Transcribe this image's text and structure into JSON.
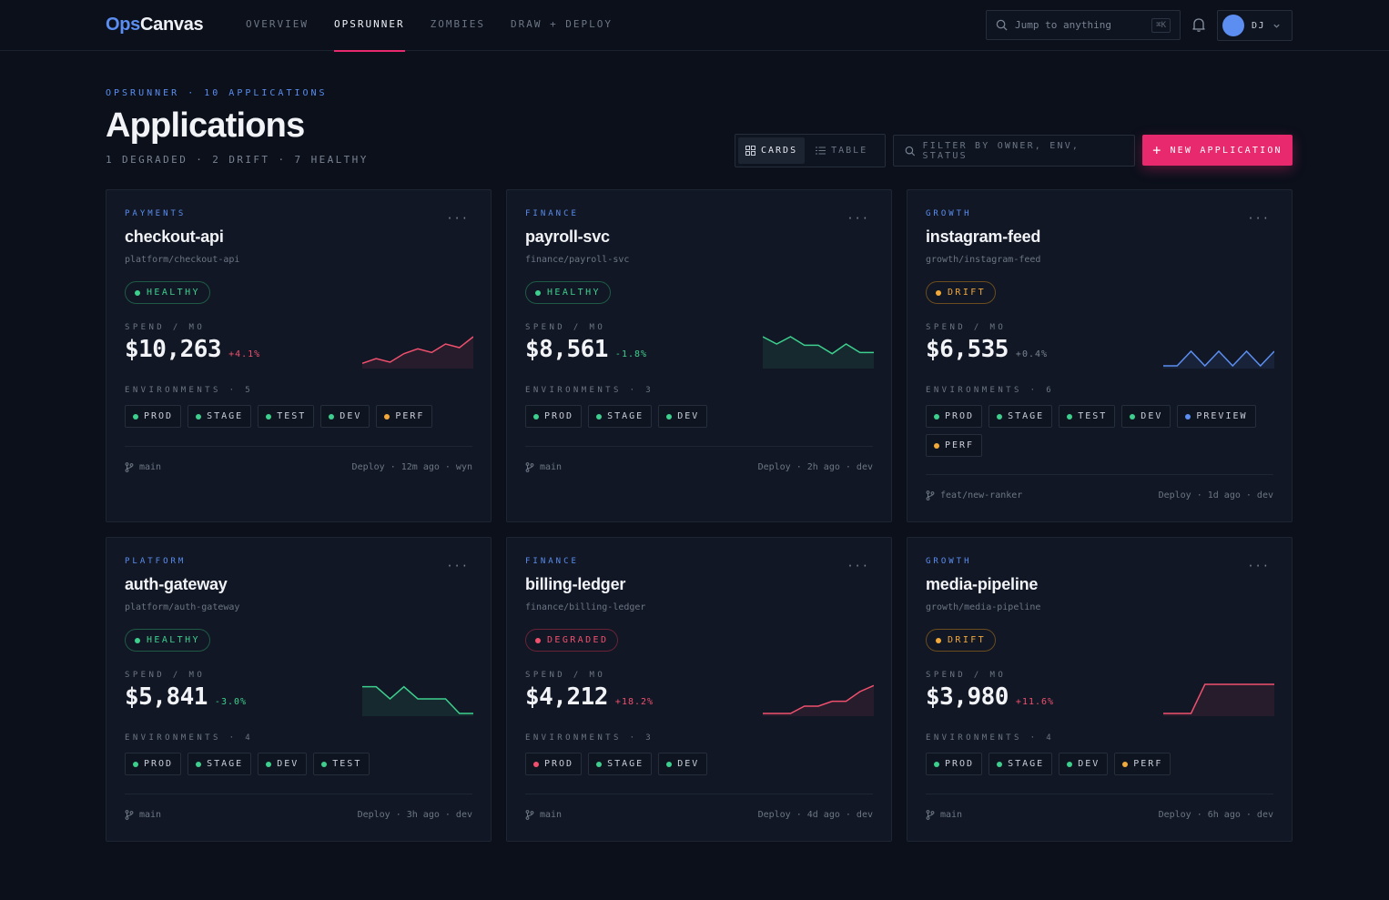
{
  "brand": {
    "part1": "Ops",
    "part2": "Canvas"
  },
  "nav": [
    {
      "label": "OVERVIEW",
      "active": false
    },
    {
      "label": "OPSRUNNER",
      "active": true
    },
    {
      "label": "ZOMBIES",
      "active": false
    },
    {
      "label": "DRAW + DEPLOY",
      "active": false
    }
  ],
  "search": {
    "placeholder": "Jump to anything",
    "shortcut": "⌘K"
  },
  "user": {
    "initials": "DJ"
  },
  "header": {
    "breadcrumb": "OPSRUNNER · 10 APPLICATIONS",
    "title": "Applications",
    "summary": "1 DEGRADED · 2 DRIFT · 7 HEALTHY"
  },
  "toolbar": {
    "cards_label": "CARDS",
    "table_label": "TABLE",
    "filter_placeholder": "FILTER BY OWNER, ENV, STATUS",
    "new_label": "NEW APPLICATION"
  },
  "labels": {
    "spend": "SPEND / MO",
    "environments": "ENVIRONMENTS",
    "more": "···"
  },
  "colors": {
    "accent": "#e9296d",
    "brand_blue": "#5b8ef0",
    "healthy": "#3ecf8e",
    "drift": "#f2a93b",
    "degraded": "#f0506e"
  },
  "cards": [
    {
      "team": "PAYMENTS",
      "name": "checkout-api",
      "repo": "platform/checkout-api",
      "status": "HEALTHY",
      "status_kind": "healthy",
      "spend": "$10,263",
      "change": "+4.1%",
      "trend": "up",
      "env_count": "5",
      "envs": [
        {
          "name": "PROD",
          "state": "healthy"
        },
        {
          "name": "STAGE",
          "state": "healthy"
        },
        {
          "name": "TEST",
          "state": "healthy"
        },
        {
          "name": "DEV",
          "state": "healthy"
        },
        {
          "name": "PERF",
          "state": "drift"
        }
      ],
      "branch": "main",
      "deploy": "Deploy · 12m ago · wyn",
      "spark": [
        2,
        6,
        3,
        10,
        14,
        11,
        18,
        15,
        24
      ]
    },
    {
      "team": "FINANCE",
      "name": "payroll-svc",
      "repo": "finance/payroll-svc",
      "status": "HEALTHY",
      "status_kind": "healthy",
      "spend": "$8,561",
      "change": "-1.8%",
      "trend": "down",
      "env_count": "3",
      "envs": [
        {
          "name": "PROD",
          "state": "healthy"
        },
        {
          "name": "STAGE",
          "state": "healthy"
        },
        {
          "name": "DEV",
          "state": "healthy"
        }
      ],
      "branch": "main",
      "deploy": "Deploy · 2h ago · dev",
      "spark": [
        24,
        18,
        24,
        17,
        17,
        10,
        18,
        11,
        11
      ]
    },
    {
      "team": "GROWTH",
      "name": "instagram-feed",
      "repo": "growth/instagram-feed",
      "status": "DRIFT",
      "status_kind": "drift",
      "spend": "$6,535",
      "change": "+0.4%",
      "trend": "flat",
      "env_count": "6",
      "envs": [
        {
          "name": "PROD",
          "state": "healthy"
        },
        {
          "name": "STAGE",
          "state": "healthy"
        },
        {
          "name": "TEST",
          "state": "healthy"
        },
        {
          "name": "DEV",
          "state": "healthy"
        },
        {
          "name": "PREVIEW",
          "state": "preview"
        },
        {
          "name": "PERF",
          "state": "drift"
        }
      ],
      "branch": "feat/new-ranker",
      "deploy": "Deploy · 1d ago · dev",
      "spark": [
        0,
        0,
        12,
        0,
        12,
        0,
        12,
        0,
        12
      ]
    },
    {
      "team": "PLATFORM",
      "name": "auth-gateway",
      "repo": "platform/auth-gateway",
      "status": "HEALTHY",
      "status_kind": "healthy",
      "spend": "$5,841",
      "change": "-3.0%",
      "trend": "down",
      "env_count": "4",
      "envs": [
        {
          "name": "PROD",
          "state": "healthy"
        },
        {
          "name": "STAGE",
          "state": "healthy"
        },
        {
          "name": "DEV",
          "state": "healthy"
        },
        {
          "name": "TEST",
          "state": "healthy"
        }
      ],
      "branch": "main",
      "deploy": "Deploy · 3h ago · dev",
      "spark": [
        22,
        22,
        12,
        22,
        12,
        12,
        12,
        0,
        0
      ]
    },
    {
      "team": "FINANCE",
      "name": "billing-ledger",
      "repo": "finance/billing-ledger",
      "status": "DEGRADED",
      "status_kind": "degraded",
      "spend": "$4,212",
      "change": "+18.2%",
      "trend": "up",
      "env_count": "3",
      "envs": [
        {
          "name": "PROD",
          "state": "degraded"
        },
        {
          "name": "STAGE",
          "state": "healthy"
        },
        {
          "name": "DEV",
          "state": "healthy"
        }
      ],
      "branch": "main",
      "deploy": "Deploy · 4d ago · dev",
      "spark": [
        0,
        0,
        0,
        6,
        6,
        10,
        10,
        18,
        23
      ]
    },
    {
      "team": "GROWTH",
      "name": "media-pipeline",
      "repo": "growth/media-pipeline",
      "status": "DRIFT",
      "status_kind": "drift",
      "spend": "$3,980",
      "change": "+11.6%",
      "trend": "up",
      "env_count": "4",
      "envs": [
        {
          "name": "PROD",
          "state": "healthy"
        },
        {
          "name": "STAGE",
          "state": "healthy"
        },
        {
          "name": "DEV",
          "state": "healthy"
        },
        {
          "name": "PERF",
          "state": "drift"
        }
      ],
      "branch": "main",
      "deploy": "Deploy · 6h ago · dev",
      "spark": [
        0,
        0,
        0,
        24,
        24,
        24,
        24,
        24,
        24
      ]
    }
  ]
}
